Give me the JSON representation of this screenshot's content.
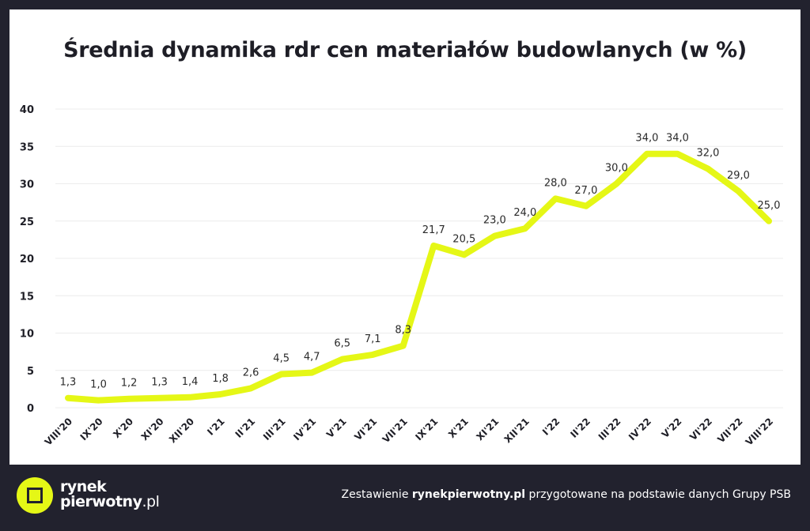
{
  "colors": {
    "background": "#22222e",
    "card": "#ffffff",
    "line": "#e5f716",
    "accent": "#e5f716"
  },
  "chart_data": {
    "type": "line",
    "title": "Średnia dynamika rdr cen materiałów budowlanych (w %)",
    "xlabel": "",
    "ylabel": "",
    "ylim": [
      0,
      40
    ],
    "yticks": [
      "0",
      "5",
      "10",
      "15",
      "20",
      "25",
      "30",
      "35",
      "40"
    ],
    "grid": true,
    "categories": [
      "VIII'20",
      "IX'20",
      "X'20",
      "XI'20",
      "XII'20",
      "I'21",
      "II'21",
      "III'21",
      "IV'21",
      "V'21",
      "VI'21",
      "VII'21",
      "IX'21",
      "X'21",
      "XI'21",
      "XII'21",
      "I'22",
      "II'22",
      "III'22",
      "IV'22",
      "V'22",
      "VI'22",
      "VII'22",
      "VIII'22"
    ],
    "values": [
      1.3,
      1.0,
      1.2,
      1.3,
      1.4,
      1.8,
      2.6,
      4.5,
      4.7,
      6.5,
      7.1,
      8.3,
      21.7,
      20.5,
      23.0,
      24.0,
      28.0,
      27.0,
      30.0,
      34.0,
      34.0,
      32.0,
      29.0,
      25.0
    ],
    "data_labels": [
      "1,3",
      "1,0",
      "1,2",
      "1,3",
      "1,4",
      "1,8",
      "2,6",
      "4,5",
      "4,7",
      "6,5",
      "7,1",
      "8,3",
      "21,7",
      "20,5",
      "23,0",
      "24,0",
      "28,0",
      "27,0",
      "30,0",
      "34,0",
      "34,0",
      "32,0",
      "29,0",
      "25,0"
    ]
  },
  "footer": {
    "logo_line1": "rynek",
    "logo_line2": "pierwotny",
    "logo_tld": ".pl",
    "credit_before": "Zestawienie ",
    "credit_brand": "rynekpierwotny.pl",
    "credit_after": " przygotowane na podstawie danych Grupy PSB"
  }
}
